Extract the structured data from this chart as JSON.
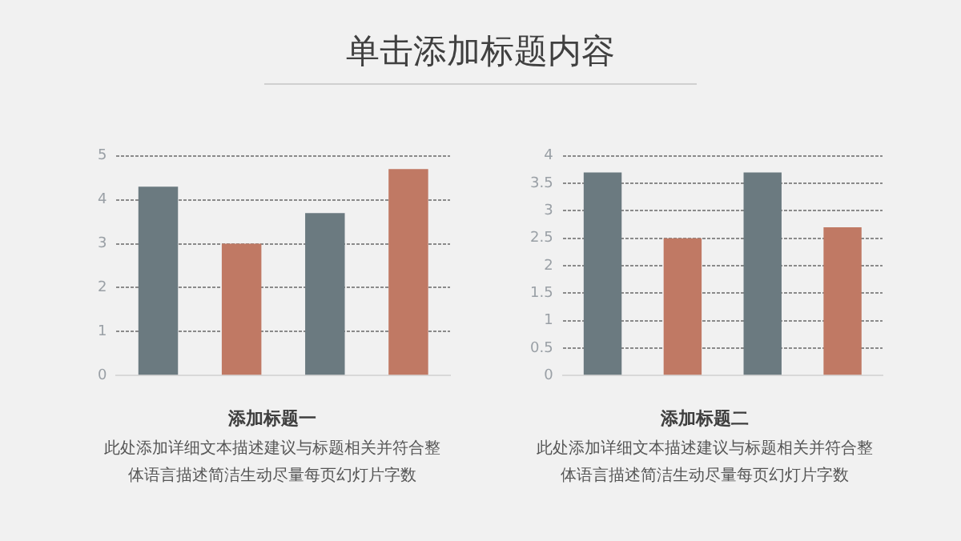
{
  "chart_data": [
    {
      "type": "other",
      "title": "单击添加标题内容"
    },
    {
      "type": "bar",
      "title": "添加标题一",
      "annotations": [
        "此处添加详细文本描述建议与标题相关并符合整",
        "体语言描述简洁生动尽量每页幻灯片字数"
      ],
      "categories": [
        null,
        null,
        null,
        null
      ],
      "values": [
        4.3,
        3.0,
        3.7,
        4.7
      ],
      "colors": [
        "#6b7a80",
        "#c07964",
        "#6b7a80",
        "#c07964"
      ],
      "ylim": [
        0,
        5
      ],
      "yticks": [
        0,
        1,
        2,
        3,
        4,
        5
      ],
      "grid": "y",
      "tick_labels": "y"
    },
    {
      "type": "bar",
      "title": "添加标题二",
      "annotations": [
        "此处添加详细文本描述建议与标题相关并符合整",
        "体语言描述简洁生动尽量每页幻灯片字数"
      ],
      "categories": [
        null,
        null,
        null,
        null
      ],
      "values": [
        3.7,
        2.5,
        3.7,
        2.7
      ],
      "colors": [
        "#6b7a80",
        "#c07964",
        "#6b7a80",
        "#c07964"
      ],
      "ylim": [
        0,
        4
      ],
      "yticks": [
        0,
        0.5,
        1,
        1.5,
        2,
        2.5,
        3,
        3.5,
        4
      ],
      "grid": "y",
      "tick_labels": "y"
    }
  ]
}
